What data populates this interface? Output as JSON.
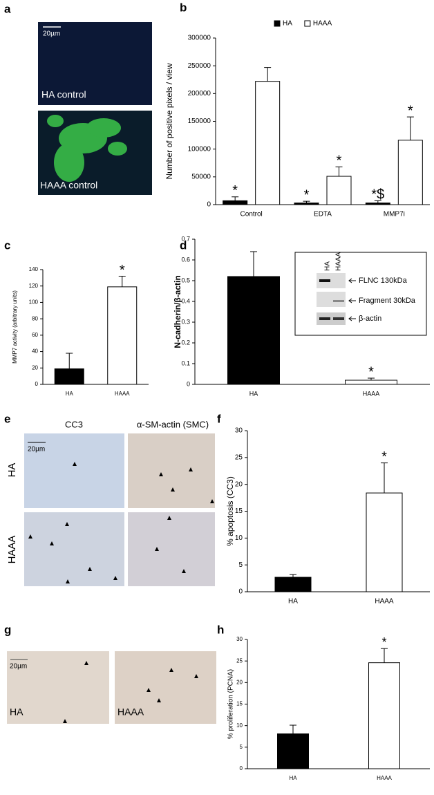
{
  "panel_labels": [
    "a",
    "b",
    "c",
    "d",
    "e",
    "f",
    "g",
    "h"
  ],
  "panel_a": {
    "scale_bar": "20µm",
    "images": [
      "HA control",
      "HAAA control"
    ]
  },
  "panel_d_inset": {
    "lanes": [
      "HA",
      "HAAA"
    ],
    "bands": [
      "FLNC 130kDa",
      "Fragment 30kDa",
      "β-actin"
    ]
  },
  "panel_e": {
    "columns": [
      "CC3",
      "α-SM-actin (SMC)"
    ],
    "rows": [
      "HA",
      "HAAA"
    ],
    "scale_bar": "20µm"
  },
  "panel_g": {
    "scale_bar": "20µm",
    "images": [
      "HA",
      "HAAA"
    ]
  },
  "chart_data": [
    {
      "type": "bar",
      "y_label": "Number of positive pixels / view",
      "legend": "top",
      "categories": [
        "Control",
        "EDTA",
        "MMP7i"
      ],
      "series": [
        {
          "name": "HA",
          "color": "#000000",
          "values": [
            7000,
            3000,
            3000
          ],
          "errors": [
            7000,
            3000,
            4000
          ],
          "annotations": [
            "*",
            "*",
            "*$"
          ]
        },
        {
          "name": "HAAA",
          "color": "#ffffff",
          "values": [
            222000,
            51000,
            116000
          ],
          "errors": [
            25000,
            17000,
            42000
          ],
          "annotations": [
            null,
            "*",
            "*"
          ]
        }
      ],
      "ylim": [
        0,
        300000
      ],
      "yticks": [
        0,
        50000,
        100000,
        150000,
        200000,
        250000,
        300000
      ]
    },
    {
      "type": "bar",
      "y_label": "MMP7 activity (arbitrary units)",
      "categories": [
        "HA",
        "HAAA"
      ],
      "values": [
        19,
        119
      ],
      "errors": [
        19,
        13
      ],
      "colors": [
        "#000000",
        "#ffffff"
      ],
      "annotations": [
        null,
        "*"
      ],
      "ylim": [
        0,
        140
      ],
      "yticks": [
        0,
        20,
        40,
        60,
        80,
        100,
        120,
        140
      ]
    },
    {
      "type": "bar",
      "y_label": "N-cadherin/β-actin",
      "categories": [
        "HA",
        "HAAA"
      ],
      "values": [
        0.52,
        0.02
      ],
      "errors": [
        0.12,
        0.01
      ],
      "colors": [
        "#000000",
        "#ffffff"
      ],
      "annotations": [
        null,
        "*"
      ],
      "ylim": [
        0,
        0.7
      ],
      "yticks": [
        0,
        0.1,
        0.2,
        0.3,
        0.4,
        0.5,
        0.6,
        0.7
      ]
    },
    {
      "type": "bar",
      "y_label": "% apoptosis (CC3)",
      "categories": [
        "HA",
        "HAAA"
      ],
      "values": [
        2.7,
        18.4
      ],
      "errors": [
        0.5,
        5.6
      ],
      "colors": [
        "#000000",
        "#ffffff"
      ],
      "annotations": [
        null,
        "*"
      ],
      "ylim": [
        0,
        30
      ],
      "yticks": [
        0,
        5,
        10,
        15,
        20,
        25,
        30
      ]
    },
    {
      "type": "bar",
      "y_label": "% proliferation (PCNA)",
      "categories": [
        "HA",
        "HAAA"
      ],
      "values": [
        8.1,
        24.6
      ],
      "errors": [
        2,
        3.3
      ],
      "colors": [
        "#000000",
        "#ffffff"
      ],
      "annotations": [
        null,
        "*"
      ],
      "ylim": [
        0,
        30
      ],
      "yticks": [
        0,
        5,
        10,
        15,
        20,
        25,
        30
      ]
    }
  ]
}
